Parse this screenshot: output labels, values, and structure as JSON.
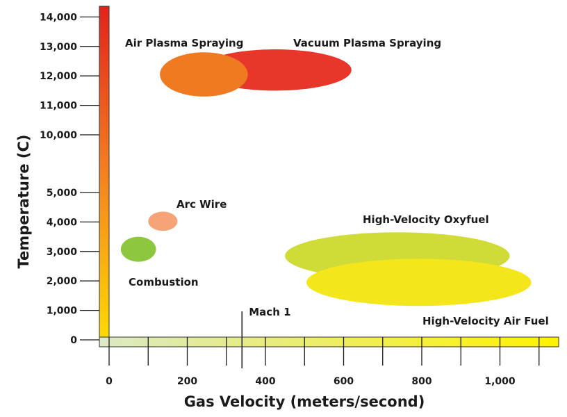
{
  "chart_data": {
    "type": "scatter",
    "title": "",
    "xlabel": "Gas Velocity (meters/second)",
    "ylabel": "Temperature (C)",
    "xlim": [
      0,
      1150
    ],
    "x_ticks": [
      0,
      100,
      200,
      300,
      400,
      500,
      600,
      700,
      800,
      900,
      1000,
      1100
    ],
    "x_tick_labels": [
      {
        "value": 0,
        "label": "0"
      },
      {
        "value": 200,
        "label": "200"
      },
      {
        "value": 400,
        "label": "400"
      },
      {
        "value": 600,
        "label": "600"
      },
      {
        "value": 800,
        "label": "800"
      },
      {
        "value": 1000,
        "label": "1,000"
      }
    ],
    "y_ticks": [
      {
        "value": 0,
        "label": "0"
      },
      {
        "value": 1000,
        "label": "1,000"
      },
      {
        "value": 2000,
        "label": "2,000"
      },
      {
        "value": 3000,
        "label": "3,000"
      },
      {
        "value": 4000,
        "label": "4,000"
      },
      {
        "value": 5000,
        "label": "5,000"
      },
      {
        "value": 10000,
        "label": "10,000"
      },
      {
        "value": 11000,
        "label": "11,000"
      },
      {
        "value": 12000,
        "label": "12,000"
      },
      {
        "value": 13000,
        "label": "13,000"
      },
      {
        "value": 14000,
        "label": "14,000"
      }
    ],
    "y_axis_break": [
      5000,
      10000
    ],
    "grid": false,
    "annotations": [
      {
        "label": "Mach 1",
        "x": 340
      }
    ],
    "regions": [
      {
        "name": "Vacuum Plasma Spraying",
        "x_min": 230,
        "x_max": 620,
        "y_min": 11500,
        "y_max": 12900,
        "color": "#e8362a"
      },
      {
        "name": "Air Plasma Spraying",
        "x_min": 130,
        "x_max": 355,
        "y_min": 11300,
        "y_max": 12800,
        "color": "#f07a22"
      },
      {
        "name": "Arc Wire",
        "x_min": 100,
        "x_max": 175,
        "y_min": 3700,
        "y_max": 4350,
        "color": "#f5a377"
      },
      {
        "name": "Combustion",
        "x_min": 30,
        "x_max": 120,
        "y_min": 2650,
        "y_max": 3500,
        "color": "#8dc63f"
      },
      {
        "name": "High-Velocity Oxyfuel",
        "x_min": 450,
        "x_max": 1025,
        "y_min": 2050,
        "y_max": 3650,
        "color": "#cfdc38"
      },
      {
        "name": "High-Velocity Air Fuel",
        "x_min": 505,
        "x_max": 1080,
        "y_min": 1150,
        "y_max": 2750,
        "color": "#f5e61b"
      }
    ],
    "colors": {
      "axis_red": "#e2231a",
      "axis_orange": "#f58220",
      "axis_yellow": "#ffde00",
      "x_bar_green": "#dbe9c6",
      "x_bar_yellow": "#fff200"
    }
  }
}
